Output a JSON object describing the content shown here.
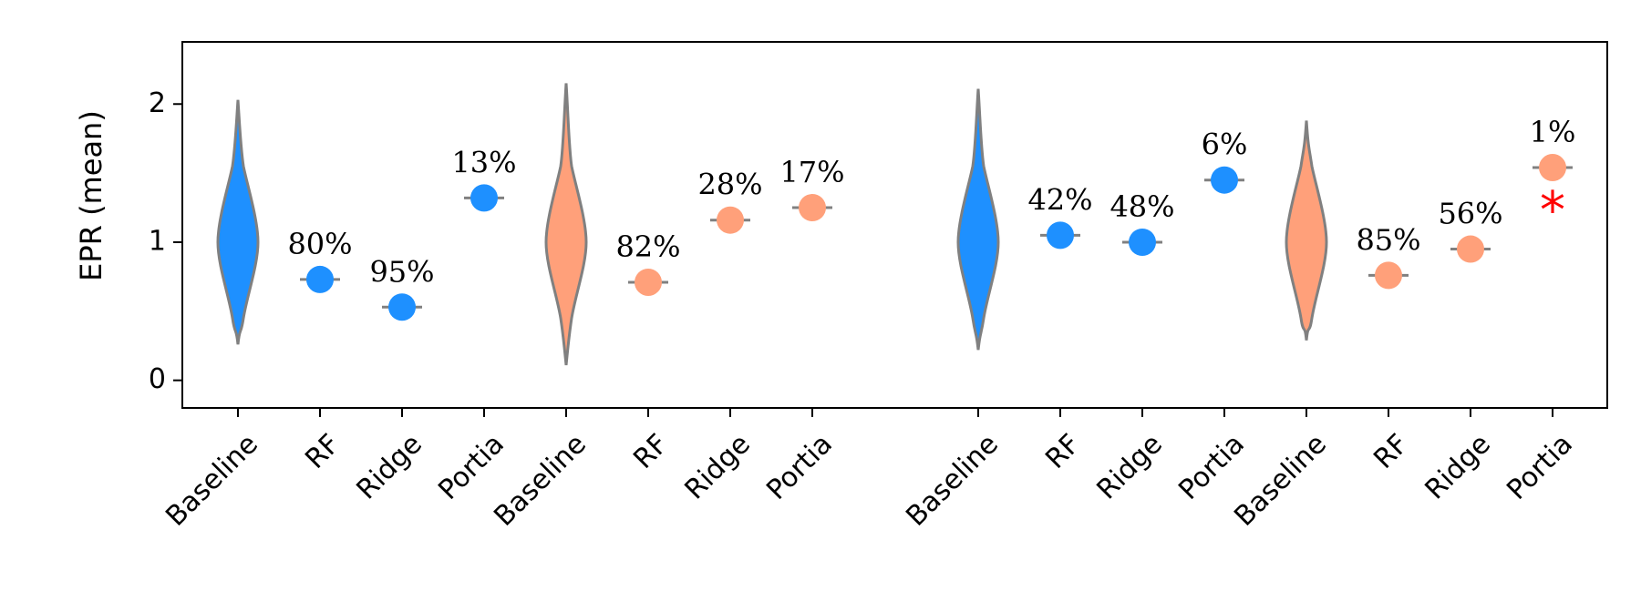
{
  "chart_data": {
    "type": "violin-and-point",
    "ylabel": "EPR (mean)",
    "ylim": [
      -0.2,
      2.45
    ],
    "yticks": [
      0,
      1,
      2
    ],
    "grid": false,
    "colors": {
      "blue": "#1e90ff",
      "orange": "#ffa07a",
      "outline": "#808080",
      "star": "#ff0000"
    },
    "categories": [
      "Baseline",
      "RF",
      "Ridge",
      "Portia",
      "Baseline",
      "RF",
      "Ridge",
      "Portia",
      "Baseline",
      "RF",
      "Ridge",
      "Portia",
      "Baseline",
      "RF",
      "Ridge",
      "Portia"
    ],
    "violins": [
      {
        "category_index": 0,
        "color": "blue",
        "min": 0.26,
        "max": 2.03,
        "center": 1.0
      },
      {
        "category_index": 4,
        "color": "orange",
        "min": 0.11,
        "max": 2.15,
        "center": 1.0
      },
      {
        "category_index": 8,
        "color": "blue",
        "min": 0.22,
        "max": 2.11,
        "center": 1.0
      },
      {
        "category_index": 12,
        "color": "orange",
        "min": 0.29,
        "max": 1.88,
        "center": 1.0
      }
    ],
    "points": [
      {
        "category_index": 1,
        "color": "blue",
        "value": 0.73,
        "label": "80%"
      },
      {
        "category_index": 2,
        "color": "blue",
        "value": 0.53,
        "label": "95%"
      },
      {
        "category_index": 3,
        "color": "blue",
        "value": 1.32,
        "label": "13%"
      },
      {
        "category_index": 5,
        "color": "orange",
        "value": 0.71,
        "label": "82%"
      },
      {
        "category_index": 6,
        "color": "orange",
        "value": 1.16,
        "label": "28%"
      },
      {
        "category_index": 7,
        "color": "orange",
        "value": 1.25,
        "label": "17%"
      },
      {
        "category_index": 9,
        "color": "blue",
        "value": 1.05,
        "label": "42%"
      },
      {
        "category_index": 10,
        "color": "blue",
        "value": 1.0,
        "label": "48%"
      },
      {
        "category_index": 11,
        "color": "blue",
        "value": 1.45,
        "label": "6%"
      },
      {
        "category_index": 13,
        "color": "orange",
        "value": 0.76,
        "label": "85%"
      },
      {
        "category_index": 14,
        "color": "orange",
        "value": 0.95,
        "label": "56%"
      },
      {
        "category_index": 15,
        "color": "orange",
        "value": 1.54,
        "label": "1%"
      }
    ],
    "annotations": [
      {
        "category_index": 15,
        "value": 1.25,
        "text": "*",
        "color": "star"
      }
    ]
  }
}
